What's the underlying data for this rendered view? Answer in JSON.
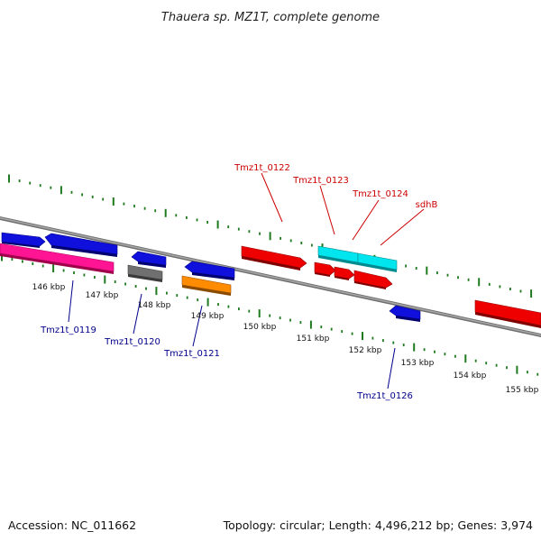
{
  "title": "Thauera sp. MZ1T, complete genome",
  "footer": {
    "accession": "Accession: NC_011662",
    "topology": "Topology: circular; Length: 4,496,212 bp; Genes: 3,974"
  },
  "colors": {
    "backbone": "#808080",
    "tick": "#1f7a1f",
    "forward_label": "#cc0000",
    "reverse_label": "#00008b",
    "blue": "#1010dd",
    "red": "#ee0000",
    "magenta": "#ff1493",
    "gray": "#707070",
    "orange": "#ff8c00",
    "cyan": "#00e5ee"
  },
  "scale": {
    "kbp_labels": [
      "146 kbp",
      "147 kbp",
      "148 kbp",
      "149 kbp",
      "150 kbp",
      "151 kbp",
      "152 kbp",
      "153 kbp",
      "154 kbp",
      "155 kbp"
    ]
  },
  "genes": {
    "forward": [
      {
        "label": "Tmz1t_0122",
        "color": "red"
      },
      {
        "label": "Tmz1t_0123",
        "color": "cyan"
      },
      {
        "label": "Tmz1t_0124",
        "color": "cyan"
      },
      {
        "label": "sdhB",
        "color": "red"
      }
    ],
    "reverse": [
      {
        "label": "Tmz1t_0119",
        "color": "magenta"
      },
      {
        "label": "Tmz1t_0120",
        "color": "gray"
      },
      {
        "label": "Tmz1t_0121",
        "color": "orange"
      },
      {
        "label": "Tmz1t_0126",
        "color": "blue"
      }
    ]
  }
}
